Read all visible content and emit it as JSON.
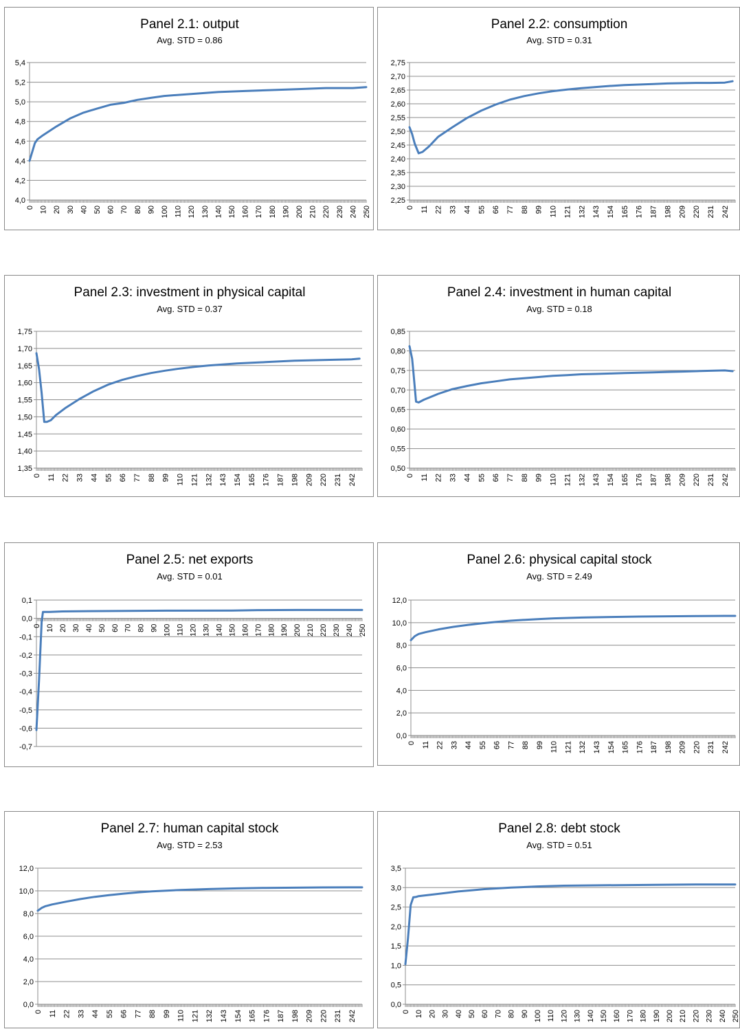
{
  "chart_data": [
    {
      "type": "line",
      "title": "Panel 2.1: output",
      "subtitle": "Avg. STD = 0.86",
      "ylim": [
        4.0,
        5.4
      ],
      "yticks": [
        "4,0",
        "4,2",
        "4,4",
        "4,6",
        "4,8",
        "5,0",
        "5,2",
        "5,4"
      ],
      "xmax": 250,
      "xtick_labels": [
        "0",
        "10",
        "20",
        "30",
        "40",
        "50",
        "60",
        "70",
        "80",
        "90",
        "100",
        "110",
        "120",
        "130",
        "140",
        "150",
        "160",
        "170",
        "180",
        "190",
        "200",
        "210",
        "220",
        "230",
        "240",
        "250"
      ],
      "xtick_values": [
        0,
        10,
        20,
        30,
        40,
        50,
        60,
        70,
        80,
        90,
        100,
        110,
        120,
        130,
        140,
        150,
        160,
        170,
        180,
        190,
        200,
        210,
        220,
        230,
        240,
        250
      ],
      "grid": true,
      "series": [
        {
          "x": [
            0,
            4,
            6,
            10,
            20,
            30,
            40,
            50,
            60,
            70,
            80,
            90,
            100,
            120,
            140,
            160,
            180,
            200,
            220,
            240,
            250
          ],
          "values": [
            4.4,
            4.58,
            4.62,
            4.66,
            4.75,
            4.83,
            4.89,
            4.93,
            4.97,
            4.99,
            5.02,
            5.04,
            5.06,
            5.08,
            5.1,
            5.11,
            5.12,
            5.13,
            5.14,
            5.14,
            5.15
          ]
        }
      ]
    },
    {
      "type": "line",
      "title": "Panel 2.2: consumption",
      "subtitle": "Avg. STD = 0.31",
      "ylim": [
        2.25,
        2.75
      ],
      "yticks": [
        "2,25",
        "2,30",
        "2,35",
        "2,40",
        "2,45",
        "2,50",
        "2,55",
        "2,60",
        "2,65",
        "2,70",
        "2,75"
      ],
      "xmax": 250,
      "xtick_labels": [
        "0",
        "11",
        "22",
        "33",
        "44",
        "55",
        "66",
        "77",
        "88",
        "99",
        "110",
        "121",
        "132",
        "143",
        "154",
        "165",
        "176",
        "187",
        "198",
        "209",
        "220",
        "231",
        "242"
      ],
      "xtick_values": [
        0,
        11,
        22,
        33,
        44,
        55,
        66,
        77,
        88,
        99,
        110,
        121,
        132,
        143,
        154,
        165,
        176,
        187,
        198,
        209,
        220,
        231,
        242
      ],
      "grid": true,
      "series": [
        {
          "x": [
            0,
            2,
            4,
            7,
            10,
            15,
            22,
            33,
            44,
            55,
            66,
            77,
            88,
            99,
            110,
            121,
            132,
            143,
            154,
            165,
            176,
            187,
            198,
            209,
            220,
            231,
            242,
            248
          ],
          "values": [
            2.515,
            2.49,
            2.455,
            2.42,
            2.425,
            2.445,
            2.48,
            2.515,
            2.548,
            2.575,
            2.597,
            2.615,
            2.628,
            2.638,
            2.646,
            2.652,
            2.657,
            2.661,
            2.665,
            2.668,
            2.67,
            2.672,
            2.674,
            2.675,
            2.676,
            2.676,
            2.677,
            2.682
          ]
        }
      ]
    },
    {
      "type": "line",
      "title": "Panel 2.3: investment in physical capital",
      "subtitle": "Avg. STD = 0.37",
      "ylim": [
        1.35,
        1.75
      ],
      "yticks": [
        "1,35",
        "1,40",
        "1,45",
        "1,50",
        "1,55",
        "1,60",
        "1,65",
        "1,70",
        "1,75"
      ],
      "xmax": 250,
      "xtick_labels": [
        "0",
        "11",
        "22",
        "33",
        "44",
        "55",
        "66",
        "77",
        "88",
        "99",
        "110",
        "121",
        "132",
        "143",
        "154",
        "165",
        "176",
        "187",
        "198",
        "209",
        "220",
        "231",
        "242"
      ],
      "xtick_values": [
        0,
        11,
        22,
        33,
        44,
        55,
        66,
        77,
        88,
        99,
        110,
        121,
        132,
        143,
        154,
        165,
        176,
        187,
        198,
        209,
        220,
        231,
        242
      ],
      "grid": true,
      "series": [
        {
          "x": [
            0,
            2,
            4,
            6,
            8,
            11,
            15,
            22,
            33,
            44,
            55,
            66,
            77,
            88,
            99,
            110,
            121,
            132,
            143,
            154,
            165,
            176,
            187,
            198,
            209,
            220,
            231,
            242,
            248
          ],
          "values": [
            1.686,
            1.64,
            1.57,
            1.485,
            1.485,
            1.49,
            1.505,
            1.525,
            1.552,
            1.575,
            1.594,
            1.608,
            1.619,
            1.628,
            1.635,
            1.641,
            1.646,
            1.65,
            1.653,
            1.656,
            1.658,
            1.66,
            1.662,
            1.664,
            1.665,
            1.666,
            1.667,
            1.668,
            1.67
          ]
        }
      ]
    },
    {
      "type": "line",
      "title": "Panel 2.4: investment in human capital",
      "subtitle": "Avg. STD = 0.18",
      "ylim": [
        0.5,
        0.85
      ],
      "yticks": [
        "0,50",
        "0,55",
        "0,60",
        "0,65",
        "0,70",
        "0,75",
        "0,80",
        "0,85"
      ],
      "xmax": 250,
      "xtick_labels": [
        "0",
        "11",
        "22",
        "33",
        "44",
        "55",
        "66",
        "77",
        "88",
        "99",
        "110",
        "121",
        "132",
        "143",
        "154",
        "165",
        "176",
        "187",
        "198",
        "209",
        "220",
        "231",
        "242"
      ],
      "xtick_values": [
        0,
        11,
        22,
        33,
        44,
        55,
        66,
        77,
        88,
        99,
        110,
        121,
        132,
        143,
        154,
        165,
        176,
        187,
        198,
        209,
        220,
        231,
        242
      ],
      "grid": true,
      "series": [
        {
          "x": [
            0,
            2,
            3,
            5,
            7,
            11,
            22,
            33,
            44,
            55,
            66,
            77,
            88,
            99,
            110,
            121,
            132,
            143,
            154,
            165,
            176,
            187,
            198,
            209,
            220,
            231,
            242,
            248
          ],
          "values": [
            0.812,
            0.78,
            0.745,
            0.67,
            0.668,
            0.675,
            0.69,
            0.702,
            0.71,
            0.717,
            0.722,
            0.727,
            0.73,
            0.733,
            0.736,
            0.738,
            0.74,
            0.741,
            0.742,
            0.743,
            0.744,
            0.745,
            0.746,
            0.747,
            0.748,
            0.749,
            0.75,
            0.748
          ]
        }
      ]
    },
    {
      "type": "line",
      "title": "Panel 2.5: net exports",
      "subtitle": "Avg. STD = 0.01",
      "ylim": [
        -0.7,
        0.1
      ],
      "yticks": [
        "-0,7",
        "-0,6",
        "-0,5",
        "-0,4",
        "-0,3",
        "-0,2",
        "-0,1",
        "0,0",
        "0,1"
      ],
      "xmax": 250,
      "xtick_labels": [
        "0",
        "10",
        "20",
        "30",
        "40",
        "50",
        "60",
        "70",
        "80",
        "90",
        "100",
        "110",
        "120",
        "130",
        "140",
        "150",
        "160",
        "170",
        "180",
        "190",
        "200",
        "210",
        "220",
        "230",
        "240",
        "250"
      ],
      "xtick_values": [
        0,
        10,
        20,
        30,
        40,
        50,
        60,
        70,
        80,
        90,
        100,
        110,
        120,
        130,
        140,
        150,
        160,
        170,
        180,
        190,
        200,
        210,
        220,
        230,
        240,
        250
      ],
      "grid": true,
      "series": [
        {
          "x": [
            0,
            2,
            3,
            4,
            5,
            6,
            10,
            20,
            50,
            100,
            150,
            170,
            200,
            250
          ],
          "values": [
            -0.61,
            -0.34,
            -0.18,
            -0.02,
            0.035,
            0.035,
            0.035,
            0.038,
            0.04,
            0.042,
            0.043,
            0.045,
            0.046,
            0.046
          ]
        }
      ]
    },
    {
      "type": "line",
      "title": "Panel 2.6: physical capital stock",
      "subtitle": "Avg. STD = 2.49",
      "ylim": [
        0.0,
        12.0
      ],
      "yticks": [
        "0,0",
        "2,0",
        "4,0",
        "6,0",
        "8,0",
        "10,0",
        "12,0"
      ],
      "xmax": 250,
      "xtick_labels": [
        "0",
        "11",
        "22",
        "33",
        "44",
        "55",
        "66",
        "77",
        "88",
        "99",
        "110",
        "121",
        "132",
        "143",
        "154",
        "165",
        "176",
        "187",
        "198",
        "209",
        "220",
        "231",
        "242"
      ],
      "xtick_values": [
        0,
        11,
        22,
        33,
        44,
        55,
        66,
        77,
        88,
        99,
        110,
        121,
        132,
        143,
        154,
        165,
        176,
        187,
        198,
        209,
        220,
        231,
        242
      ],
      "grid": true,
      "series": [
        {
          "x": [
            0,
            3,
            6,
            11,
            22,
            33,
            44,
            55,
            66,
            77,
            88,
            99,
            110,
            132,
            154,
            176,
            198,
            220,
            242,
            250
          ],
          "values": [
            8.45,
            8.8,
            9.0,
            9.15,
            9.42,
            9.63,
            9.8,
            9.95,
            10.07,
            10.17,
            10.25,
            10.32,
            10.38,
            10.45,
            10.5,
            10.54,
            10.56,
            10.58,
            10.6,
            10.6
          ]
        }
      ]
    },
    {
      "type": "line",
      "title": "Panel 2.7: human capital stock",
      "subtitle": "Avg. STD = 2.53",
      "ylim": [
        0.0,
        12.0
      ],
      "yticks": [
        "0,0",
        "2,0",
        "4,0",
        "6,0",
        "8,0",
        "10,0",
        "12,0"
      ],
      "xmax": 250,
      "xtick_labels": [
        "0",
        "11",
        "22",
        "33",
        "44",
        "55",
        "66",
        "77",
        "88",
        "99",
        "110",
        "121",
        "132",
        "143",
        "154",
        "165",
        "176",
        "187",
        "198",
        "209",
        "220",
        "231",
        "242"
      ],
      "xtick_values": [
        0,
        11,
        22,
        33,
        44,
        55,
        66,
        77,
        88,
        99,
        110,
        121,
        132,
        143,
        154,
        165,
        176,
        187,
        198,
        209,
        220,
        231,
        242
      ],
      "grid": true,
      "series": [
        {
          "x": [
            0,
            3,
            6,
            11,
            22,
            33,
            44,
            55,
            66,
            77,
            88,
            99,
            110,
            132,
            154,
            176,
            198,
            220,
            242,
            250
          ],
          "values": [
            8.25,
            8.5,
            8.65,
            8.8,
            9.05,
            9.28,
            9.47,
            9.62,
            9.75,
            9.86,
            9.95,
            10.02,
            10.08,
            10.16,
            10.22,
            10.26,
            10.28,
            10.3,
            10.31,
            10.31
          ]
        }
      ]
    },
    {
      "type": "line",
      "title": "Panel 2.8: debt  stock",
      "subtitle": "Avg. STD = 0.51",
      "ylim": [
        0.0,
        3.5
      ],
      "yticks": [
        "0,0",
        "0,5",
        "1,0",
        "1,5",
        "2,0",
        "2,5",
        "3,0",
        "3,5"
      ],
      "xmax": 250,
      "xtick_labels": [
        "0",
        "10",
        "20",
        "30",
        "40",
        "50",
        "60",
        "70",
        "80",
        "90",
        "100",
        "110",
        "120",
        "130",
        "140",
        "150",
        "160",
        "170",
        "180",
        "190",
        "200",
        "210",
        "220",
        "230",
        "240",
        "250"
      ],
      "xtick_values": [
        0,
        10,
        20,
        30,
        40,
        50,
        60,
        70,
        80,
        90,
        100,
        110,
        120,
        130,
        140,
        150,
        160,
        170,
        180,
        190,
        200,
        210,
        220,
        230,
        240,
        250
      ],
      "grid": true,
      "series": [
        {
          "x": [
            0,
            2,
            4,
            6,
            8,
            10,
            20,
            30,
            40,
            50,
            60,
            70,
            80,
            100,
            120,
            150,
            190,
            220,
            250
          ],
          "values": [
            1.03,
            1.7,
            2.55,
            2.75,
            2.76,
            2.78,
            2.82,
            2.86,
            2.9,
            2.93,
            2.96,
            2.98,
            3.0,
            3.03,
            3.05,
            3.06,
            3.07,
            3.08,
            3.08
          ]
        }
      ]
    }
  ]
}
